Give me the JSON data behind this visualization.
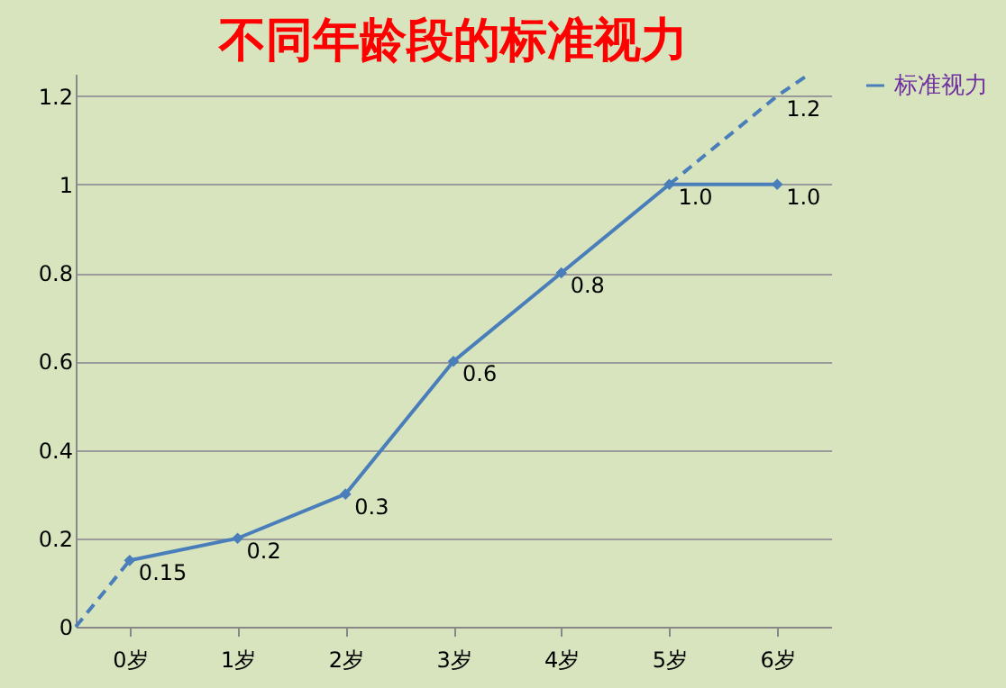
{
  "chart_data": {
    "type": "line",
    "title": "不同年龄段的标准视力",
    "x": [
      0,
      1,
      2,
      3,
      4,
      5,
      6
    ],
    "xlim": [
      -0.5,
      6.5
    ],
    "xticks": [
      {
        "value": 0,
        "label": "0岁"
      },
      {
        "value": 1,
        "label": "1岁"
      },
      {
        "value": 2,
        "label": "2岁"
      },
      {
        "value": 3,
        "label": "3岁"
      },
      {
        "value": 4,
        "label": "4岁"
      },
      {
        "value": 5,
        "label": "5岁"
      },
      {
        "value": 6,
        "label": "6岁"
      }
    ],
    "series": [
      {
        "name": "标准视力",
        "color": "#4a7ebb",
        "values": [
          0.15,
          0.2,
          0.3,
          0.6,
          0.8,
          1.0,
          1.0
        ],
        "value_labels": [
          "0.15",
          "0.2",
          "0.3",
          "0.6",
          "0.8",
          "1.0",
          "1.0"
        ],
        "marker": "diamond"
      },
      {
        "type": "line",
        "color": "#4a7ebb",
        "x": [
          -0.5,
          0
        ],
        "values": [
          0,
          0.15
        ],
        "line_style": "dashed",
        "marker": "none"
      },
      {
        "type": "line",
        "color": "#4a7ebb",
        "x": [
          5,
          6,
          6.3
        ],
        "values": [
          1.0,
          1.2,
          1.25
        ],
        "value_labels": [
          null,
          "1.2",
          null
        ],
        "line_style": "dashed",
        "marker": "none"
      }
    ],
    "ylim": [
      0,
      1.25
    ],
    "yticks": [
      0,
      0.2,
      0.4,
      0.6,
      0.8,
      1,
      1.2
    ],
    "grid": "y",
    "legend": "right"
  }
}
